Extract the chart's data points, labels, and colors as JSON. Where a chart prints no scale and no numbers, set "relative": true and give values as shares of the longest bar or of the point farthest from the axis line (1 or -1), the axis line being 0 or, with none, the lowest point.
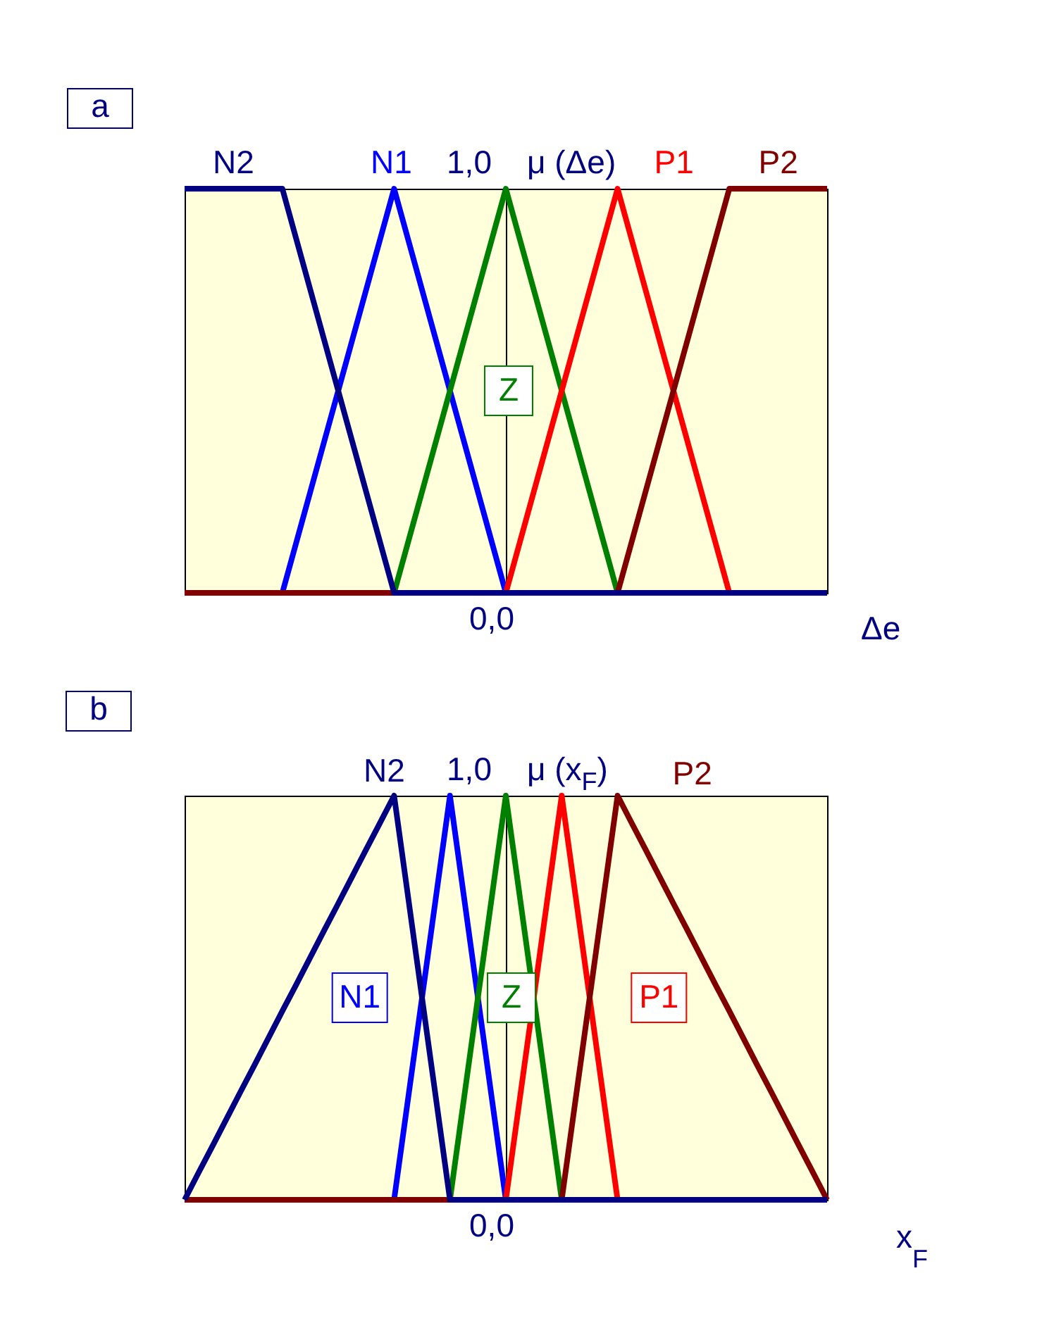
{
  "chart_data": [
    {
      "type": "line",
      "relative": true,
      "title": "a",
      "xlabel": "Δe",
      "ylabel": "μ (Δe)",
      "categories": [
        null,
        null,
        null,
        null,
        null,
        null,
        null,
        null,
        null,
        null,
        null,
        null,
        null,
        null,
        null,
        null,
        null,
        null,
        null,
        null,
        null,
        null,
        null,
        null,
        null,
        null,
        null,
        null,
        null,
        null,
        null,
        null,
        null,
        null,
        null,
        null,
        null,
        null,
        null,
        null,
        null,
        null,
        null,
        null,
        null,
        null,
        null
      ],
      "annotations": [
        "1,0",
        "0,0"
      ],
      "series": [
        {
          "name": "N2",
          "color": "#000080",
          "values": [
            1,
            1,
            1,
            1,
            1,
            1,
            1,
            1,
            0.875,
            0.75,
            0.625,
            0.5,
            0.375,
            0.25,
            0.125,
            0,
            0,
            0,
            0,
            0,
            0,
            0,
            0,
            0,
            0,
            0,
            0,
            0,
            0,
            0,
            0,
            0,
            0,
            0,
            0,
            0,
            0,
            0,
            0,
            0,
            0,
            0,
            0,
            0,
            0,
            0,
            0
          ]
        },
        {
          "name": "N1",
          "color": "#0000ff",
          "values": [
            null,
            null,
            null,
            null,
            null,
            null,
            null,
            0,
            0.125,
            0.25,
            0.375,
            0.5,
            0.625,
            0.75,
            0.875,
            1,
            0.875,
            0.75,
            0.625,
            0.5,
            0.375,
            0.25,
            0.125,
            0,
            null,
            null,
            null,
            null,
            null,
            null,
            null,
            null,
            null,
            null,
            null,
            null,
            null,
            null,
            null,
            null,
            null,
            null,
            null,
            null,
            null,
            null,
            null
          ]
        },
        {
          "name": "Z",
          "color": "#008000",
          "values": [
            null,
            null,
            null,
            null,
            null,
            null,
            null,
            null,
            null,
            null,
            null,
            null,
            null,
            null,
            null,
            0,
            0.125,
            0.25,
            0.375,
            0.5,
            0.625,
            0.75,
            0.875,
            1,
            0.875,
            0.75,
            0.625,
            0.5,
            0.375,
            0.25,
            0.125,
            0,
            null,
            null,
            null,
            null,
            null,
            null,
            null,
            null,
            null,
            null,
            null,
            null,
            null,
            null,
            null
          ]
        },
        {
          "name": "P1",
          "color": "#ff0000",
          "values": [
            null,
            null,
            null,
            null,
            null,
            null,
            null,
            null,
            null,
            null,
            null,
            null,
            null,
            null,
            null,
            null,
            null,
            null,
            null,
            null,
            null,
            null,
            null,
            0,
            0.125,
            0.25,
            0.375,
            0.5,
            0.625,
            0.75,
            0.875,
            1,
            0.875,
            0.75,
            0.625,
            0.5,
            0.375,
            0.25,
            0.125,
            0,
            null,
            null,
            null,
            null,
            null,
            null,
            null
          ]
        },
        {
          "name": "P2",
          "color": "#800000",
          "values": [
            0,
            0,
            0,
            0,
            0,
            0,
            0,
            0,
            0,
            0,
            0,
            0,
            0,
            0,
            0,
            0,
            null,
            null,
            null,
            null,
            null,
            null,
            null,
            null,
            null,
            null,
            null,
            null,
            null,
            null,
            null,
            0,
            0.125,
            0.25,
            0.375,
            0.5,
            0.625,
            0.75,
            0.875,
            1,
            1,
            1,
            1,
            1,
            1,
            1,
            1
          ]
        }
      ]
    },
    {
      "type": "line",
      "relative": true,
      "title": "b",
      "xlabel": "x$_{F}$",
      "ylabel": "μ (x$_{F}$)",
      "categories": [
        null,
        null,
        null,
        null,
        null,
        null,
        null,
        null,
        null,
        null,
        null,
        null,
        null,
        null,
        null,
        null,
        null,
        null,
        null,
        null,
        null,
        null,
        null,
        null,
        null,
        null,
        null,
        null,
        null,
        null,
        null,
        null,
        null,
        null,
        null,
        null,
        null,
        null,
        null,
        null,
        null,
        null,
        null,
        null,
        null,
        null,
        null
      ],
      "annotations": [
        "1,0",
        "0,0"
      ],
      "series": [
        {
          "name": "N2",
          "color": "#000080",
          "values": [
            0,
            0.067,
            0.133,
            0.2,
            0.267,
            0.333,
            0.4,
            0.467,
            0.533,
            0.6,
            0.667,
            0.733,
            0.8,
            0.867,
            0.933,
            1,
            0.75,
            0.5,
            0.25,
            0,
            0,
            0,
            0,
            0,
            0,
            0,
            0,
            0,
            0,
            0,
            0,
            0,
            0,
            0,
            0,
            0,
            0,
            0,
            0,
            0,
            0,
            0,
            0,
            0,
            0,
            0,
            0
          ]
        },
        {
          "name": "N1",
          "color": "#0000ff",
          "values": [
            null,
            null,
            null,
            null,
            null,
            null,
            null,
            null,
            null,
            null,
            null,
            null,
            null,
            null,
            null,
            0,
            0.25,
            0.5,
            0.75,
            1,
            0.75,
            0.5,
            0.25,
            0,
            null,
            null,
            null,
            null,
            null,
            null,
            null,
            null,
            null,
            null,
            null,
            null,
            null,
            null,
            null,
            null,
            null,
            null,
            null,
            null,
            null,
            null,
            null
          ]
        },
        {
          "name": "Z",
          "color": "#008000",
          "values": [
            null,
            null,
            null,
            null,
            null,
            null,
            null,
            null,
            null,
            null,
            null,
            null,
            null,
            null,
            null,
            null,
            null,
            null,
            null,
            0,
            0.25,
            0.5,
            0.75,
            1,
            0.75,
            0.5,
            0.25,
            0,
            null,
            null,
            null,
            null,
            null,
            null,
            null,
            null,
            null,
            null,
            null,
            null,
            null,
            null,
            null,
            null,
            null,
            null,
            null
          ]
        },
        {
          "name": "P1",
          "color": "#ff0000",
          "values": [
            null,
            null,
            null,
            null,
            null,
            null,
            null,
            null,
            null,
            null,
            null,
            null,
            null,
            null,
            null,
            null,
            null,
            null,
            null,
            null,
            null,
            null,
            null,
            0,
            0.25,
            0.5,
            0.75,
            1,
            0.75,
            0.5,
            0.25,
            0,
            null,
            null,
            null,
            null,
            null,
            null,
            null,
            null,
            null,
            null,
            null,
            null,
            null,
            null,
            null
          ]
        },
        {
          "name": "P2",
          "color": "#800000",
          "values": [
            0,
            0,
            0,
            0,
            0,
            0,
            0,
            0,
            0,
            0,
            0,
            0,
            0,
            0,
            0,
            0,
            0,
            0,
            0,
            0,
            null,
            null,
            null,
            null,
            null,
            null,
            null,
            0,
            0.25,
            0.5,
            0.75,
            1,
            0.933,
            0.867,
            0.8,
            0.733,
            0.667,
            0.6,
            0.533,
            0.467,
            0.4,
            0.333,
            0.267,
            0.2,
            0.133,
            0.067,
            0
          ]
        }
      ]
    }
  ]
}
